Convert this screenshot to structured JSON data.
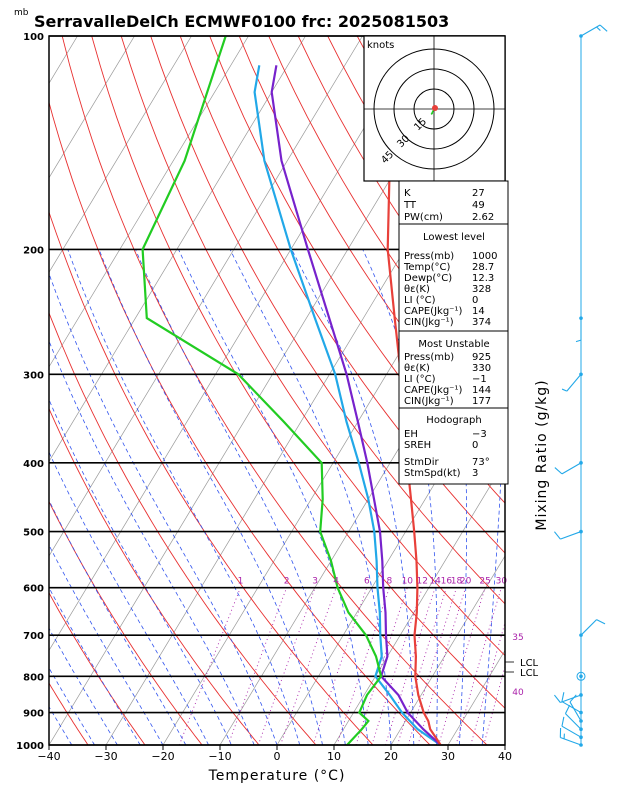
{
  "title": "SerravalleDelCh  ECMWF0100  frc: 2025081503",
  "pressure_unit": "mb",
  "x_axis_label": "Temperature (°C)",
  "right_axis_label": "Mixing Ratio (g/kg)",
  "hodograph": {
    "unit_label": "knots",
    "ring_labels": [
      "15",
      "30",
      "45"
    ]
  },
  "indices": {
    "general": [
      {
        "name": "K",
        "value": "27"
      },
      {
        "name": "TT",
        "value": "49"
      },
      {
        "name": "PW(cm)",
        "value": "2.62"
      }
    ],
    "lowest_level": {
      "header": "Lowest level",
      "rows": [
        {
          "name": "Press(mb)",
          "value": "1000"
        },
        {
          "name": "Temp(°C)",
          "value": "28.7"
        },
        {
          "name": "Dewp(°C)",
          "value": "12.3"
        },
        {
          "name": "θε(K)",
          "value": "328"
        },
        {
          "name": "LI (°C)",
          "value": "0"
        },
        {
          "name": "CAPE(Jkg⁻¹)",
          "value": "14"
        },
        {
          "name": "CIN(Jkg⁻¹)",
          "value": "374"
        }
      ]
    },
    "most_unstable": {
      "header": "Most Unstable",
      "rows": [
        {
          "name": "Press(mb)",
          "value": "925"
        },
        {
          "name": "θε(K)",
          "value": "330"
        },
        {
          "name": "LI (°C)",
          "value": "−1"
        },
        {
          "name": "CAPE(Jkg⁻¹)",
          "value": "144"
        },
        {
          "name": "CIN(Jkg⁻¹)",
          "value": "177"
        }
      ]
    },
    "hodograph_box": {
      "header": "Hodograph",
      "rows": [
        {
          "name": "EH",
          "value": "−3"
        },
        {
          "name": "SREH",
          "value": "0"
        },
        {
          "name": "StmDir",
          "value": "73°"
        },
        {
          "name": "StmSpd(kt)",
          "value": "3"
        }
      ]
    }
  },
  "lcl_labels": [
    "LCL",
    "LCL"
  ],
  "colors": {
    "temperature": "#e8403a",
    "dewpoint": "#22cc22",
    "parcel": "#7722cc",
    "virtual_temp": "#22a8e8",
    "dry_adiabat": "#e83030",
    "moist_adiabat": "#3355ee",
    "mixing_ratio": "#aa22aa",
    "isotherm": "#999999",
    "wind": "#22a8e8"
  },
  "chart_data": {
    "type": "line",
    "x_axis": {
      "label": "Temperature (°C)",
      "range": [
        -40,
        40
      ],
      "ticks": [
        -40,
        -30,
        -20,
        -10,
        0,
        10,
        20,
        30,
        40
      ]
    },
    "y_axis": {
      "label": "mb",
      "scale": "log",
      "range": [
        1000,
        100
      ],
      "ticks": [
        1000,
        900,
        800,
        700,
        600,
        500,
        400,
        300,
        200,
        100
      ]
    },
    "mixing_ratio_labels": [
      "1",
      "2",
      "3",
      "4",
      "6",
      "8",
      "10",
      "12",
      "14",
      "16",
      "18",
      "20",
      "25",
      "30",
      "35",
      "40"
    ],
    "series": [
      {
        "name": "Temperature",
        "points": [
          [
            1000,
            28.7
          ],
          [
            975,
            27
          ],
          [
            950,
            25.2
          ],
          [
            925,
            24
          ],
          [
            900,
            22.3
          ],
          [
            850,
            19.5
          ],
          [
            800,
            17
          ],
          [
            750,
            15
          ],
          [
            700,
            12.5
          ],
          [
            650,
            10.5
          ],
          [
            600,
            8
          ],
          [
            550,
            5
          ],
          [
            500,
            1.5
          ],
          [
            450,
            -2.5
          ],
          [
            400,
            -7
          ],
          [
            350,
            -12
          ],
          [
            300,
            -17.5
          ],
          [
            250,
            -24.5
          ],
          [
            200,
            -33
          ],
          [
            150,
            -42
          ],
          [
            100,
            -55
          ]
        ]
      },
      {
        "name": "Dewpoint",
        "points": [
          [
            1000,
            12.3
          ],
          [
            950,
            13.2
          ],
          [
            925,
            13.5
          ],
          [
            900,
            11
          ],
          [
            850,
            10.5
          ],
          [
            800,
            11
          ],
          [
            750,
            8
          ],
          [
            700,
            4
          ],
          [
            650,
            -1.5
          ],
          [
            600,
            -6
          ],
          [
            550,
            -10
          ],
          [
            500,
            -15
          ],
          [
            450,
            -18
          ],
          [
            400,
            -22
          ],
          [
            350,
            -33
          ],
          [
            300,
            -46
          ],
          [
            250,
            -68
          ],
          [
            200,
            -76
          ],
          [
            150,
            -78
          ],
          [
            100,
            -84
          ]
        ]
      },
      {
        "name": "Parcel",
        "points": [
          [
            1000,
            28.7
          ],
          [
            950,
            24
          ],
          [
            900,
            19.5
          ],
          [
            850,
            16
          ],
          [
            800,
            11
          ],
          [
            750,
            10
          ],
          [
            700,
            7.5
          ],
          [
            650,
            5
          ],
          [
            600,
            2
          ],
          [
            550,
            -1
          ],
          [
            500,
            -4.5
          ],
          [
            450,
            -9
          ],
          [
            400,
            -14
          ],
          [
            350,
            -20
          ],
          [
            300,
            -27
          ],
          [
            250,
            -36
          ],
          [
            200,
            -47
          ],
          [
            150,
            -61
          ],
          [
            120,
            -70
          ],
          [
            110,
            -72
          ]
        ]
      },
      {
        "name": "Virtual temperature",
        "points": [
          [
            1000,
            28.7
          ],
          [
            950,
            23
          ],
          [
            900,
            18.5
          ],
          [
            850,
            14.5
          ],
          [
            800,
            10
          ],
          [
            750,
            9
          ],
          [
            700,
            6.5
          ],
          [
            650,
            4
          ],
          [
            600,
            1
          ],
          [
            550,
            -2
          ],
          [
            500,
            -5.5
          ],
          [
            450,
            -10
          ],
          [
            400,
            -15.5
          ],
          [
            350,
            -22
          ],
          [
            300,
            -29
          ],
          [
            250,
            -38.5
          ],
          [
            200,
            -50
          ],
          [
            150,
            -64
          ],
          [
            120,
            -73
          ],
          [
            110,
            -75
          ]
        ]
      }
    ],
    "wind_barbs": [
      {
        "pressure": 1000,
        "dir_deg": 290,
        "speed_kt": 15
      },
      {
        "pressure": 975,
        "dir_deg": 300,
        "speed_kt": 10
      },
      {
        "pressure": 950,
        "dir_deg": 315,
        "speed_kt": 10
      },
      {
        "pressure": 925,
        "dir_deg": 330,
        "speed_kt": 10
      },
      {
        "pressure": 900,
        "dir_deg": 300,
        "speed_kt": 10
      },
      {
        "pressure": 850,
        "dir_deg": 250,
        "speed_kt": 10
      },
      {
        "pressure": 800,
        "dir_deg": 0,
        "speed_kt": 0
      },
      {
        "pressure": 700,
        "dir_deg": 45,
        "speed_kt": 10
      },
      {
        "pressure": 500,
        "dir_deg": 250,
        "speed_kt": 10
      },
      {
        "pressure": 400,
        "dir_deg": 240,
        "speed_kt": 10
      },
      {
        "pressure": 300,
        "dir_deg": 220,
        "speed_kt": 5
      },
      {
        "pressure": 250,
        "dir_deg": 180,
        "speed_kt": 5
      },
      {
        "pressure": 100,
        "dir_deg": 60,
        "speed_kt": 15
      }
    ],
    "hodograph_points": [
      [
        0,
        0
      ],
      [
        -1,
        -2
      ],
      [
        -2,
        -4
      ],
      [
        -1,
        -3
      ]
    ]
  }
}
